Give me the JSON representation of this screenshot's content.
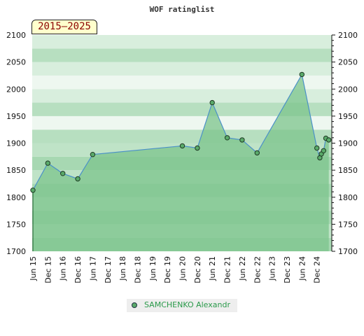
{
  "chart_data": {
    "type": "area",
    "title": "WOF ratinglist",
    "range_label": "2015—2025",
    "ylim": [
      1700,
      2100
    ],
    "yticks": [
      1700,
      1750,
      1800,
      1850,
      1900,
      1950,
      2000,
      2050,
      2100
    ],
    "x_categories": [
      "Jun 15",
      "Dec 15",
      "Jun 16",
      "Dec 16",
      "Jun 17",
      "Dec 17",
      "Jun 18",
      "Dec 18",
      "Jun 19",
      "Dec 19",
      "Jun 20",
      "Dec 20",
      "Jun 21",
      "Dec 21",
      "Jun 22",
      "Dec 22",
      "Jun 23",
      "Dec 23",
      "Jun 24",
      "Dec 24"
    ],
    "legend": "bottom-center",
    "colors": {
      "fill": "#7cc48c",
      "line": "#4a90c8",
      "point": "#5aaa6a"
    },
    "series": [
      {
        "name": "SAMCHENKO Alexandr",
        "points": [
          {
            "x": 0.0,
            "y": 1813
          },
          {
            "x": 1.0,
            "y": 1863
          },
          {
            "x": 2.0,
            "y": 1844
          },
          {
            "x": 3.0,
            "y": 1834
          },
          {
            "x": 4.0,
            "y": 1879
          },
          {
            "x": 10.0,
            "y": 1895
          },
          {
            "x": 11.0,
            "y": 1891
          },
          {
            "x": 12.0,
            "y": 1975
          },
          {
            "x": 13.0,
            "y": 1910
          },
          {
            "x": 14.0,
            "y": 1906
          },
          {
            "x": 15.0,
            "y": 1882
          },
          {
            "x": 18.0,
            "y": 2027
          },
          {
            "x": 19.0,
            "y": 1891
          },
          {
            "x": 19.2,
            "y": 1873
          },
          {
            "x": 19.3,
            "y": 1880
          },
          {
            "x": 19.45,
            "y": 1886
          },
          {
            "x": 19.6,
            "y": 1909
          },
          {
            "x": 19.8,
            "y": 1906
          }
        ]
      }
    ]
  }
}
